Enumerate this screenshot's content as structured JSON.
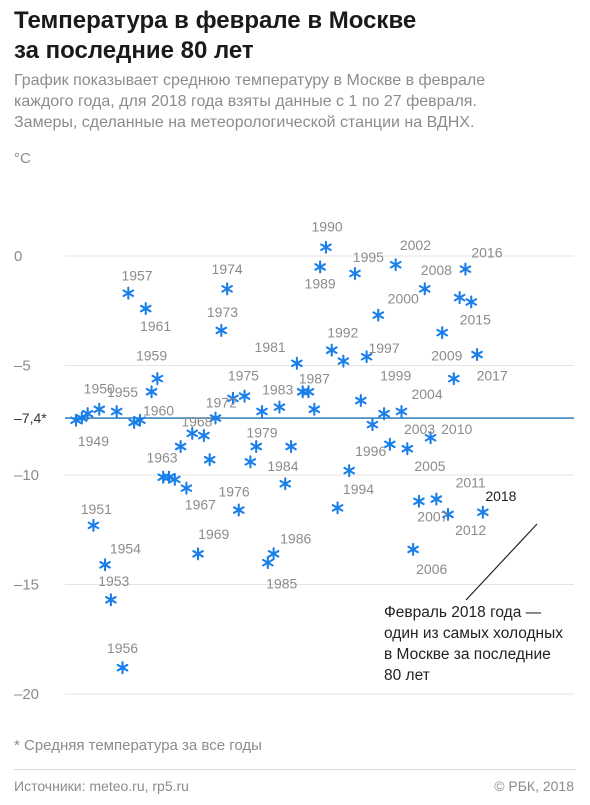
{
  "header": {
    "title_line1": "Температура в феврале в Москве",
    "title_line2": "за последние 80 лет",
    "subtitle_line1": "График показывает среднюю температуру в Москве в феврале",
    "subtitle_line2": "каждого года, для 2018 года взяты данные с 1 по 27 февраля.",
    "subtitle_line3": "Замеры, сделанные на метеорологической станции на ВДНХ."
  },
  "colors": {
    "marker": "#1a7fe8",
    "avg_line": "#1a6fb0",
    "label": "#8c8c8c",
    "grid": "#e3e3e3"
  },
  "chart_data": {
    "type": "scatter",
    "unit": "°C",
    "ylim": [
      -20,
      1
    ],
    "yticks": [
      0,
      -5,
      -10,
      -15,
      -20
    ],
    "xlim": [
      1938,
      2018
    ],
    "grid": true,
    "marker": "asterisk",
    "average": {
      "value": -7.4,
      "label": "–7,4*"
    },
    "points": [
      {
        "year": 1938,
        "temp": -7.5
      },
      {
        "year": 1939,
        "temp": -7.4
      },
      {
        "year": 1940,
        "temp": -7.2
      },
      {
        "year": 1941,
        "temp": -12.3
      },
      {
        "year": 1942,
        "temp": -7.0
      },
      {
        "year": 1943,
        "temp": -14.1
      },
      {
        "year": 1944,
        "temp": -15.7
      },
      {
        "year": 1945,
        "temp": -7.1
      },
      {
        "year": 1946,
        "temp": -18.8
      },
      {
        "year": 1947,
        "temp": -1.7
      },
      {
        "year": 1948,
        "temp": -7.6
      },
      {
        "year": 1949,
        "temp": -7.5
      },
      {
        "year": 1950,
        "temp": -2.4
      },
      {
        "year": 1951,
        "temp": -6.2
      },
      {
        "year": 1952,
        "temp": -5.6
      },
      {
        "year": 1953,
        "temp": -10.1
      },
      {
        "year": 1954,
        "temp": -10.1
      },
      {
        "year": 1955,
        "temp": -10.2
      },
      {
        "year": 1956,
        "temp": -8.7
      },
      {
        "year": 1957,
        "temp": -10.6
      },
      {
        "year": 1958,
        "temp": -8.1
      },
      {
        "year": 1959,
        "temp": -13.6
      },
      {
        "year": 1960,
        "temp": -8.2
      },
      {
        "year": 1961,
        "temp": -9.3
      },
      {
        "year": 1962,
        "temp": -7.4
      },
      {
        "year": 1963,
        "temp": -3.4
      },
      {
        "year": 1964,
        "temp": -1.5
      },
      {
        "year": 1965,
        "temp": -6.5
      },
      {
        "year": 1966,
        "temp": -11.6
      },
      {
        "year": 1967,
        "temp": -6.4
      },
      {
        "year": 1968,
        "temp": -9.4
      },
      {
        "year": 1969,
        "temp": -8.7
      },
      {
        "year": 1970,
        "temp": -7.1
      },
      {
        "year": 1971,
        "temp": -14.0
      },
      {
        "year": 1972,
        "temp": -13.6
      },
      {
        "year": 1973,
        "temp": -6.9
      },
      {
        "year": 1974,
        "temp": -10.4
      },
      {
        "year": 1975,
        "temp": -8.7
      },
      {
        "year": 1976,
        "temp": -4.9
      },
      {
        "year": 1977,
        "temp": -6.2
      },
      {
        "year": 1978,
        "temp": -6.2
      },
      {
        "year": 1979,
        "temp": -7.0
      },
      {
        "year": 1980,
        "temp": -0.5
      },
      {
        "year": 1981,
        "temp": 0.4
      },
      {
        "year": 1982,
        "temp": -4.3
      },
      {
        "year": 1983,
        "temp": -11.5
      },
      {
        "year": 1984,
        "temp": -4.8
      },
      {
        "year": 1985,
        "temp": -9.8
      },
      {
        "year": 1986,
        "temp": -0.8
      },
      {
        "year": 1987,
        "temp": -6.6
      },
      {
        "year": 1988,
        "temp": -4.6
      },
      {
        "year": 1989,
        "temp": -7.7
      },
      {
        "year": 1990,
        "temp": -2.7
      },
      {
        "year": 1991,
        "temp": -7.2
      },
      {
        "year": 1992,
        "temp": -8.6
      },
      {
        "year": 1993,
        "temp": -0.4
      },
      {
        "year": 1994,
        "temp": -7.1
      },
      {
        "year": 1995,
        "temp": -8.8
      },
      {
        "year": 1996,
        "temp": -13.4
      },
      {
        "year": 1997,
        "temp": -11.2
      },
      {
        "year": 1998,
        "temp": -1.5
      },
      {
        "year": 1999,
        "temp": -8.3
      },
      {
        "year": 2000,
        "temp": -11.1
      },
      {
        "year": 2001,
        "temp": -3.5
      },
      {
        "year": 2002,
        "temp": -11.8
      },
      {
        "year": 2003,
        "temp": -5.6
      },
      {
        "year": 2004,
        "temp": -1.9
      },
      {
        "year": 2005,
        "temp": -0.6
      },
      {
        "year": 2006,
        "temp": -2.1
      },
      {
        "year": 2007,
        "temp": -4.5
      },
      {
        "year": 2008,
        "temp": -11.7
      }
    ],
    "labels": [
      {
        "text": "1949",
        "year": 1941,
        "temp": -8.45
      },
      {
        "text": "1950",
        "year": 1942,
        "temp": -6.05
      },
      {
        "text": "1951",
        "year": 1941.5,
        "temp": -11.55
      },
      {
        "text": "1953",
        "year": 1944.5,
        "temp": -14.85
      },
      {
        "text": "1954",
        "year": 1946.5,
        "temp": -13.35
      },
      {
        "text": "1955",
        "year": 1946,
        "temp": -6.2
      },
      {
        "text": "1956",
        "year": 1946,
        "temp": -17.9
      },
      {
        "text": "1957",
        "year": 1948.5,
        "temp": -0.9
      },
      {
        "text": "1959",
        "year": 1951,
        "temp": -4.55
      },
      {
        "text": "1960",
        "year": 1952.2,
        "temp": -7.05
      },
      {
        "text": "1961",
        "year": 1951.7,
        "temp": -3.2
      },
      {
        "text": "1963",
        "year": 1952.8,
        "temp": -9.2
      },
      {
        "text": "1967",
        "year": 1959.4,
        "temp": -11.35
      },
      {
        "text": "1968",
        "year": 1958.8,
        "temp": -7.55
      },
      {
        "text": "1969",
        "year": 1961.7,
        "temp": -12.7
      },
      {
        "text": "1972",
        "year": 1963,
        "temp": -6.7
      },
      {
        "text": "1973",
        "year": 1963.2,
        "temp": -2.55
      },
      {
        "text": "1974",
        "year": 1964,
        "temp": -0.6
      },
      {
        "text": "1975",
        "year": 1966.8,
        "temp": -5.45
      },
      {
        "text": "1976",
        "year": 1965.2,
        "temp": -10.75
      },
      {
        "text": "1979",
        "year": 1970,
        "temp": -8.05
      },
      {
        "text": "1981",
        "year": 1971.4,
        "temp": -4.15
      },
      {
        "text": "1983",
        "year": 1972.7,
        "temp": -6.1
      },
      {
        "text": "1984",
        "year": 1973.6,
        "temp": -9.6
      },
      {
        "text": "1985",
        "year": 1973.4,
        "temp": -14.95
      },
      {
        "text": "1986",
        "year": 1975.8,
        "temp": -12.9
      },
      {
        "text": "1987",
        "year": 1979,
        "temp": -5.6
      },
      {
        "text": "1989",
        "year": 1980,
        "temp": -1.25
      },
      {
        "text": "1990",
        "year": 1981.2,
        "temp": 1.35
      },
      {
        "text": "1992",
        "year": 1983.9,
        "temp": -3.5
      },
      {
        "text": "1994",
        "year": 1986.6,
        "temp": -10.65
      },
      {
        "text": "1995",
        "year": 1988.3,
        "temp": -0.05
      },
      {
        "text": "1996",
        "year": 1988.7,
        "temp": -8.9
      },
      {
        "text": "1997",
        "year": 1991,
        "temp": -4.2
      },
      {
        "text": "1999",
        "year": 1993,
        "temp": -5.45
      },
      {
        "text": "2000",
        "year": 1994.3,
        "temp": -1.95
      },
      {
        "text": "2002",
        "year": 1996.4,
        "temp": 0.5
      },
      {
        "text": "2003",
        "year": 1997.1,
        "temp": -7.9
      },
      {
        "text": "2004",
        "year": 1998.4,
        "temp": -6.3
      },
      {
        "text": "2005",
        "year": 1998.9,
        "temp": -9.6
      },
      {
        "text": "2006",
        "year": 1999.2,
        "temp": -14.3
      },
      {
        "text": "2007",
        "year": 1999.4,
        "temp": -11.9
      },
      {
        "text": "2008",
        "year": 2000,
        "temp": -0.65
      },
      {
        "text": "2009",
        "year": 2001.8,
        "temp": -4.55
      },
      {
        "text": "2010",
        "year": 2003.5,
        "temp": -7.9
      },
      {
        "text": "2011",
        "year": 2005.9,
        "temp": -10.35
      },
      {
        "text": "2012",
        "year": 2005.9,
        "temp": -12.5
      },
      {
        "text": "2015",
        "year": 2006.7,
        "temp": -2.9
      },
      {
        "text": "2016",
        "year": 2008.7,
        "temp": 0.15
      },
      {
        "text": "2017",
        "year": 2009.6,
        "temp": -5.45
      },
      {
        "text": "2018",
        "year": 2011.1,
        "temp": -10.95
      }
    ],
    "annotation": {
      "lines": [
        "Февраль 2018 года —",
        "один из самых холодных",
        "в Москве за последние",
        "80 лет"
      ]
    }
  },
  "footer": {
    "footnote": "* Средняя температура за все годы",
    "sources": "Источники: meteo.ru, rp5.ru",
    "copyright": "© РБК, 2018"
  }
}
